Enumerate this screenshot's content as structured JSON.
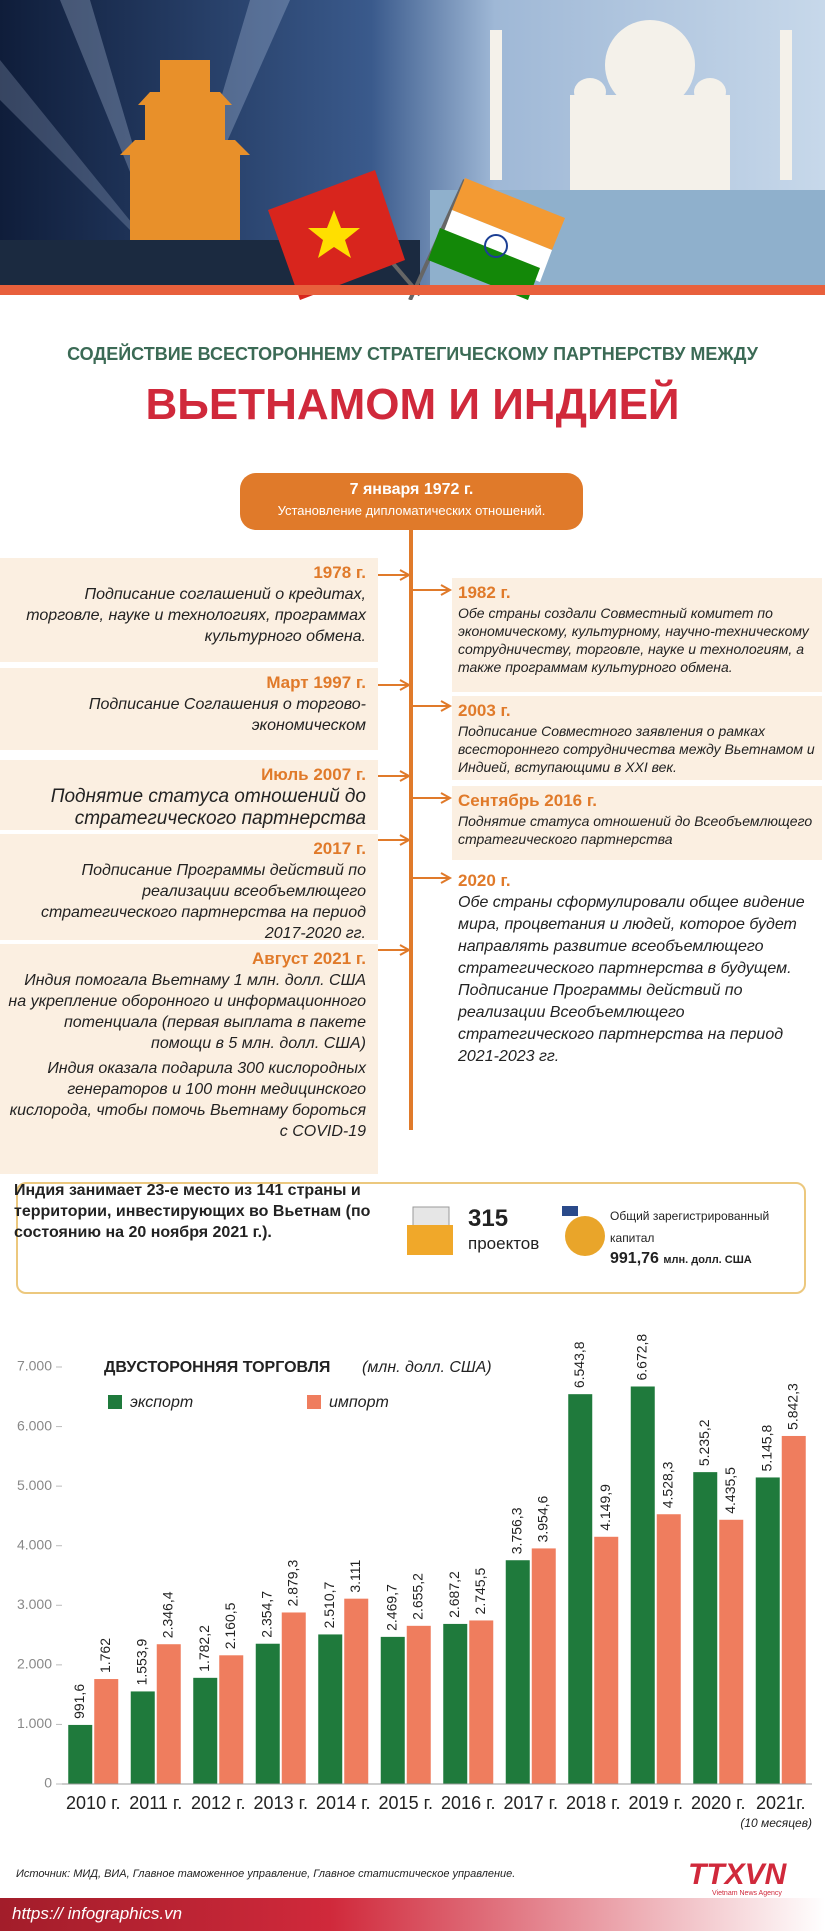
{
  "header": {
    "title_line1": "СОДЕЙСТВИЕ ВСЕСТОРОННЕМУ СТРАТЕГИЧЕСКОМУ ПАРТНЕРСТВУ МЕЖДУ",
    "title_line2": "ВЬЕТНАМОМ И ИНДИЕЙ"
  },
  "timeline": {
    "start": {
      "date": "7 января 1972 г.",
      "text": "Установление дипломатических отношений."
    },
    "left": [
      {
        "date": "1978 г.",
        "paragraphs": [
          "Подписание соглашений о кредитах, торговле, науке и технологиях, программах культурного обмена."
        ]
      },
      {
        "date": "Март 1997 г.",
        "paragraphs": [
          "Подписание Соглашения о торгово-экономическом"
        ]
      },
      {
        "date": "Июль 2007 г.",
        "paragraphs": [
          "Поднятие статуса отношений до стратегического партнерства"
        ]
      },
      {
        "date": "2017 г.",
        "paragraphs": [
          "Подписание Программы действий по реализации всеобъемлющего стратегического партнерства на период 2017-2020 гг."
        ]
      },
      {
        "date": "Август 2021 г.",
        "paragraphs": [
          "Индия помогала Вьетнаму 1 млн. долл. США на укрепление оборонного и информационного потенциала (первая выплата в пакете помощи в 5 млн. долл. США)",
          "Индия оказала подарила 300 кислородных генераторов и 100 тонн медицинского кислорода, чтобы помочь Вьетнаму бороться с COVID-19"
        ]
      }
    ],
    "right": [
      {
        "date": "1982 г.",
        "paragraphs": [
          "Обе страны создали Совместный комитет по экономическому, культурному, научно-техническому сотрудничеству, торговле, науке и технологиям, а также программам культурного обмена."
        ]
      },
      {
        "date": "2003 г.",
        "paragraphs": [
          "Подписание Совместного заявления о рамках всестороннего сотрудничества между Вьетнамом и Индией, вступающими в XXI век."
        ]
      },
      {
        "date": "Сентябрь 2016 г.",
        "paragraphs": [
          "Поднятие статуса отношений до Всеобъемлющего стратегического партнерства"
        ]
      },
      {
        "date": "2020 г.",
        "paragraphs": [
          "Обе страны сформулировали общее видение мира, процветания и людей, которое будет направлять развитие всеобъемлющего стратегического партнерства в будущем.",
          "Подписание Программы действий по реализации Всеобъемлющего стратегического партнерства на период 2021-2023 гг."
        ]
      }
    ]
  },
  "investment": {
    "rank_text": "Индия занимает 23-е место из 141 страны и территории, инвестирующих во Вьетнам (по состоянию на 20 ноября 2021 г.).",
    "projects_value": "315",
    "projects_label": "проектов",
    "capital_label": "Общий зарегистрированный капитал",
    "capital_value": "991,76",
    "capital_unit": "млн. долл. США"
  },
  "chart_data": {
    "type": "bar",
    "title": "ДВУСТОРОННЯЯ ТОРГОВЛЯ",
    "subtitle": "(млн. долл. США)",
    "categories": [
      "2010 г.",
      "2011 г.",
      "2012 г.",
      "2013 г.",
      "2014 г.",
      "2015 г.",
      "2016 г.",
      "2017 г.",
      "2018 г.",
      "2019 г.",
      "2020 г.",
      "2021г."
    ],
    "annotation": "(10 месяцев)",
    "series": [
      {
        "name": "экспорт",
        "color": "#1f7a3c",
        "values": [
          991.6,
          1553.9,
          1782.2,
          2354.7,
          2510.7,
          2469.7,
          2687.2,
          3756.3,
          6543.8,
          6672.8,
          5235.2,
          5145.8
        ],
        "value_labels": [
          "991,6",
          "1.553,9",
          "1.782,2",
          "2.354,7",
          "2.510,7",
          "2.469,7",
          "2.687,2",
          "3.756,3",
          "6.543,8",
          "6.672,8",
          "5.235,2",
          "5.145,8"
        ]
      },
      {
        "name": "импорт",
        "color": "#ef7d5e",
        "values": [
          1762,
          2346.4,
          2160.5,
          2879.3,
          3111,
          2655.2,
          2745.5,
          3954.6,
          4149.9,
          4528.3,
          4435.5,
          5842.3
        ],
        "value_labels": [
          "1.762",
          "2.346,4",
          "2.160,5",
          "2.879,3",
          "3.111",
          "2.655,2",
          "2.745,5",
          "3.954,6",
          "4.149,9",
          "4.528,3",
          "4.435,5",
          "5.842,3"
        ]
      }
    ],
    "ylim": [
      0,
      7000
    ],
    "yticks": [
      0,
      {
        "value": 1000,
        "label": "1.000"
      },
      {
        "value": 2000,
        "label": "2.000"
      },
      {
        "value": 3000,
        "label": "3.000"
      },
      {
        "value": 4000,
        "label": "4.000"
      },
      {
        "value": 5000,
        "label": "5.000"
      },
      {
        "value": 6000,
        "label": "6.000"
      },
      {
        "value": 7000,
        "label": "7.000"
      }
    ],
    "grid": false
  },
  "footer": {
    "source": "Источник: МИД, ВИА, Главное таможенное управление, Главное статистическое управление.",
    "logo": "TTXVN",
    "logo_sub": "Vietnam News Agency",
    "url": "https:// infographics.vn"
  }
}
